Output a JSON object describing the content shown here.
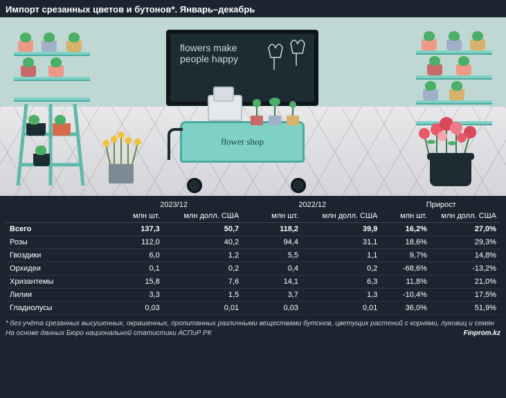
{
  "title": "Импорт срезанных цветов и бутонов*. Январь–декабрь",
  "illustration": {
    "chalkboard_line1": "flowers make",
    "chalkboard_line2": "people happy",
    "cart_label": "flower shop",
    "background_top": "#bfd8d4",
    "shelf_color": "#7fd1c6",
    "chalkboard_bg": "#1d2b32"
  },
  "table": {
    "group_headers": [
      "",
      "2023/12",
      "2022/12",
      "Прирост"
    ],
    "sub_headers": [
      "",
      "млн шт.",
      "млн долл. США",
      "млн шт.",
      "млн долл. США",
      "млн шт.",
      "млн долл. США"
    ],
    "rows": [
      {
        "label": "Всего",
        "total": true,
        "cells": [
          "137,3",
          "50,7",
          "118,2",
          "39,9",
          "16,2%",
          "27,0%"
        ]
      },
      {
        "label": "Розы",
        "cells": [
          "112,0",
          "40,2",
          "94,4",
          "31,1",
          "18,6%",
          "29,3%"
        ]
      },
      {
        "label": "Гвоздики",
        "cells": [
          "6,0",
          "1,2",
          "5,5",
          "1,1",
          "9,7%",
          "14,8%"
        ]
      },
      {
        "label": "Орхидеи",
        "cells": [
          "0,1",
          "0,2",
          "0,4",
          "0,2",
          "-68,6%",
          "-13,2%"
        ]
      },
      {
        "label": "Хризантемы",
        "cells": [
          "15,8",
          "7,6",
          "14,1",
          "6,3",
          "11,8%",
          "21,0%"
        ]
      },
      {
        "label": "Лилии",
        "cells": [
          "3,3",
          "1,5",
          "3,7",
          "1,3",
          "-10,4%",
          "17,5%"
        ]
      },
      {
        "label": "Гладиолусы",
        "cells": [
          "0,03",
          "0,01",
          "0,03",
          "0,01",
          "36,0%",
          "51,9%"
        ]
      }
    ],
    "colwidths": [
      "20%",
      "12%",
      "16%",
      "12%",
      "16%",
      "10%",
      "14%"
    ],
    "border_color": "#3d4a55",
    "row_border_color": "#2c3843",
    "font_size": 11
  },
  "footnote": "* без учёта срезанных высушенных, окрашенных, пропитанных различными веществами бутонов, цветущих растений с корнями, луковиц и семян",
  "source": "На основе данных Бюро национальной статистики АСПиР РК",
  "brand": "Finprom.kz",
  "colors": {
    "page_bg": "#1a2530",
    "text": "#ffffff",
    "muted": "#cfd5da"
  }
}
